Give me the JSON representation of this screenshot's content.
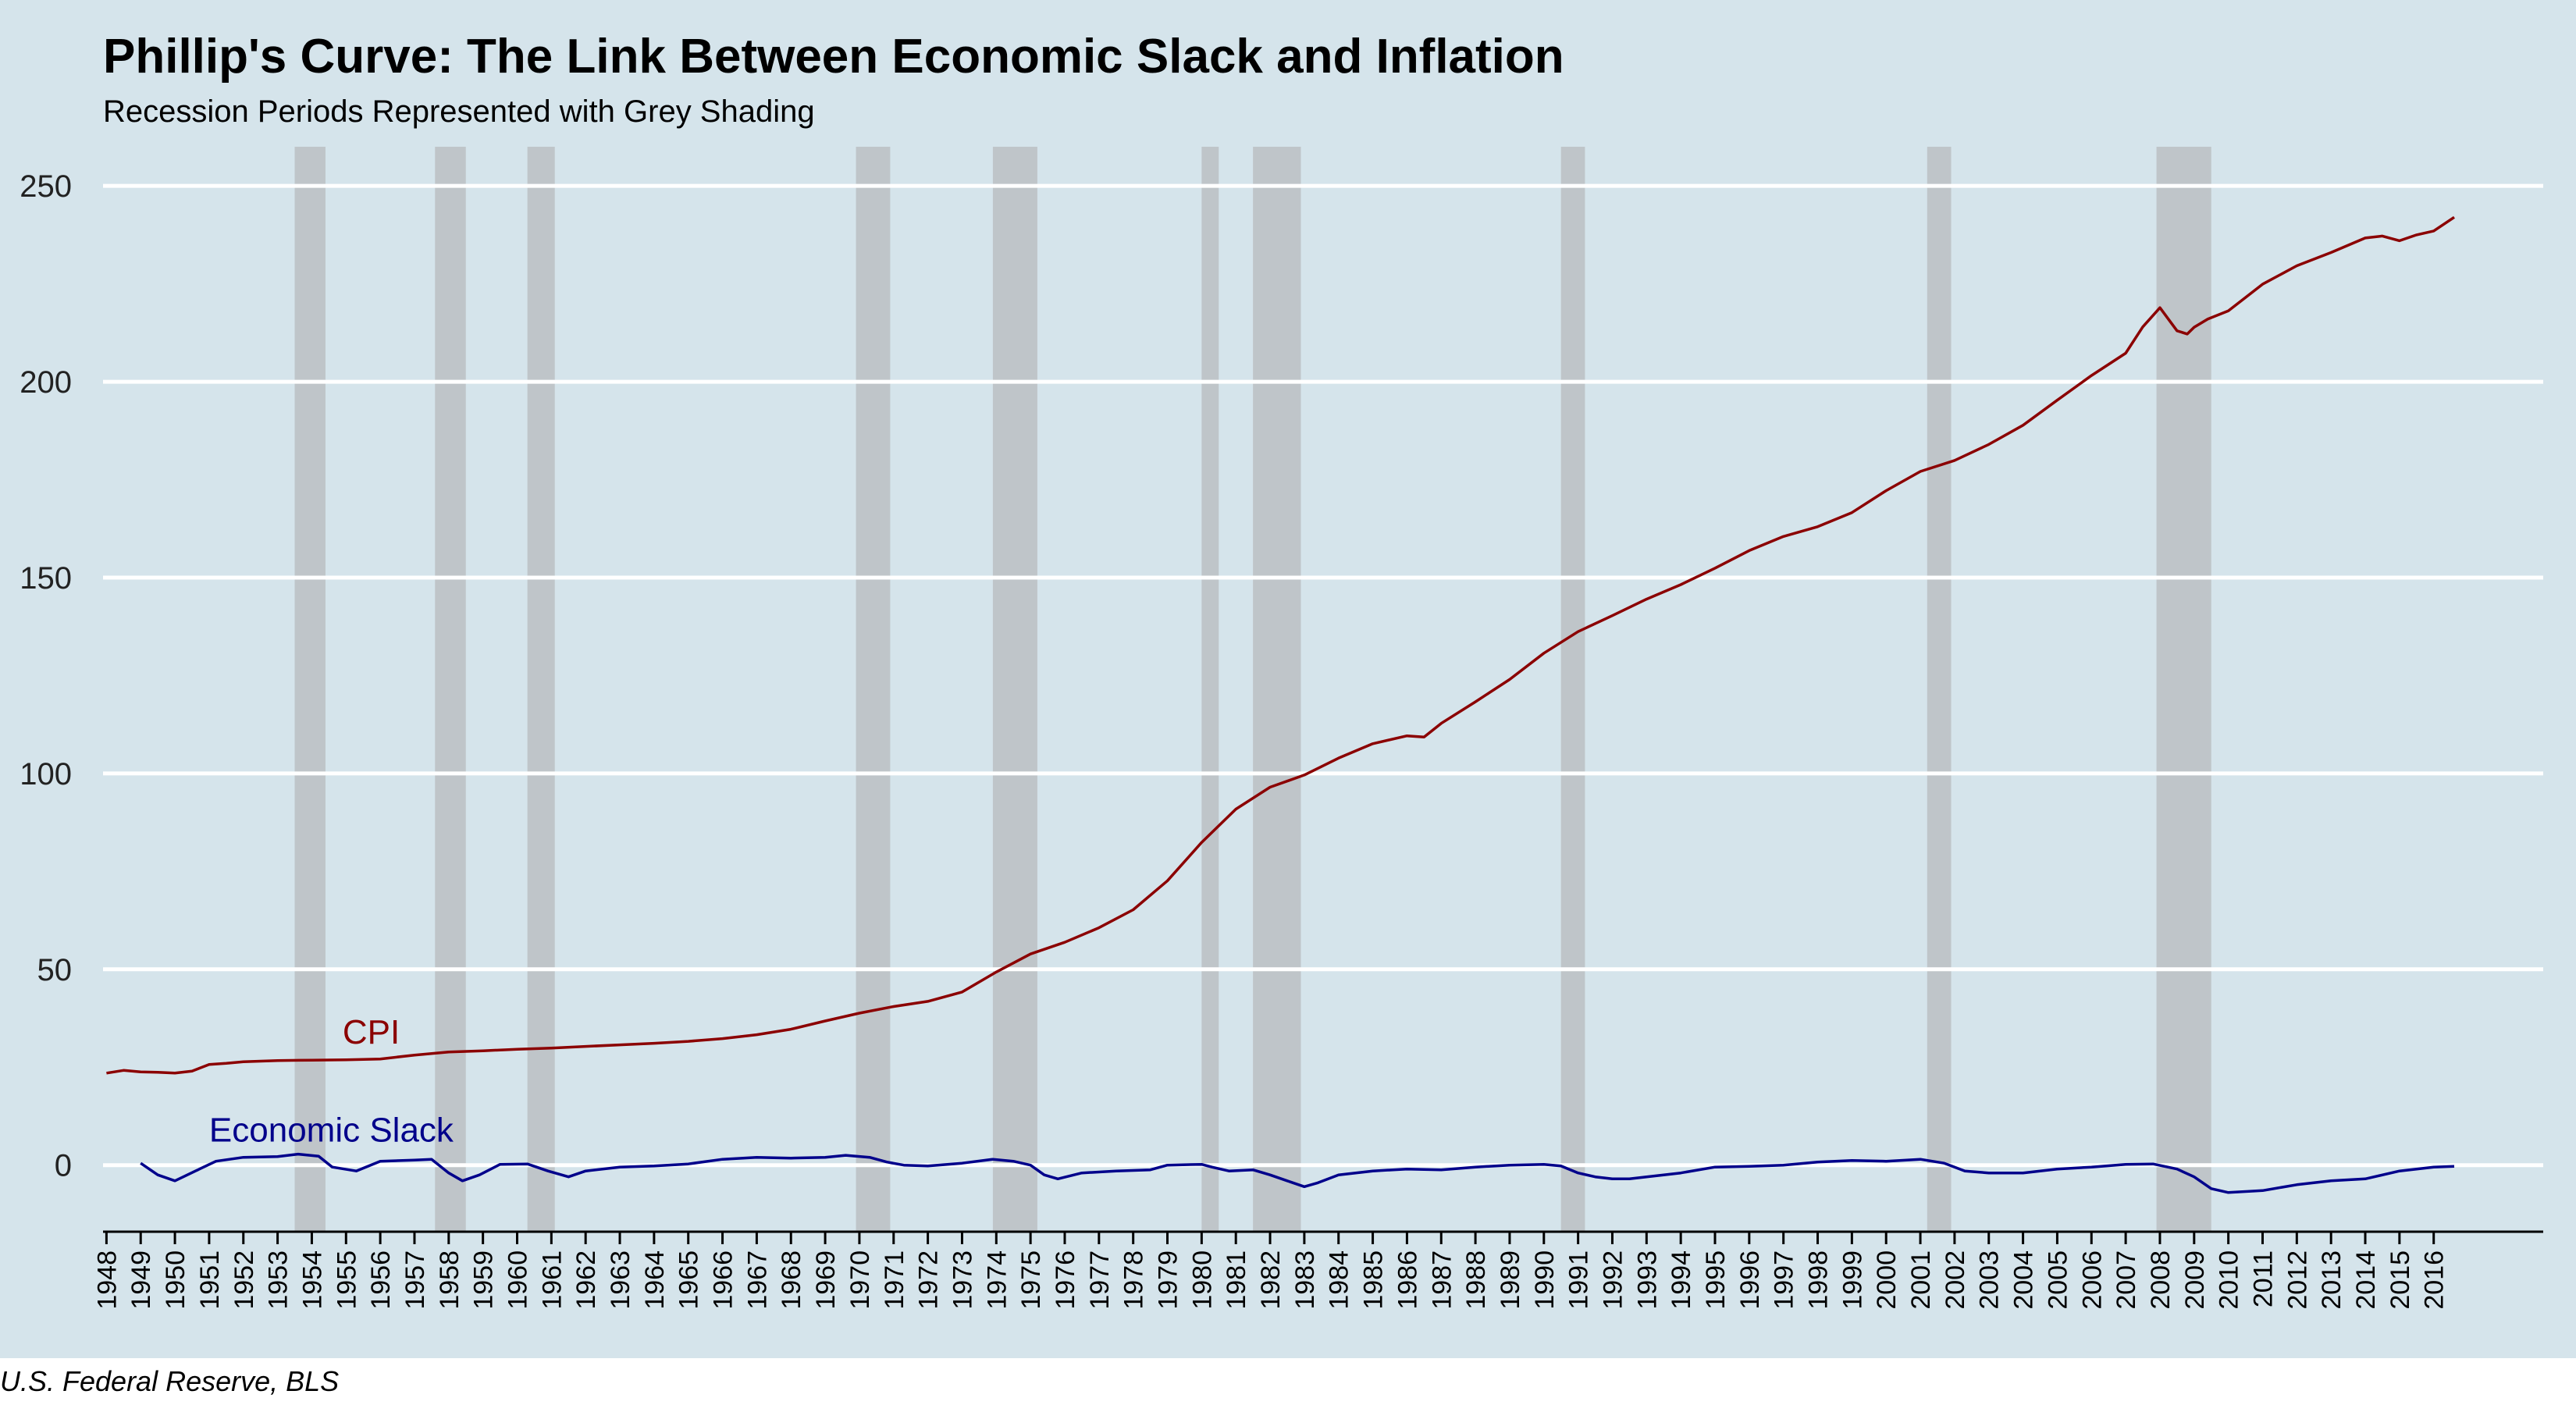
{
  "colors": {
    "panel_bg": "#d5e4eb",
    "gridline": "#ffffff",
    "recession": "#bfc5c9",
    "axis": "#000000",
    "cpi": "#8b0000",
    "slack": "#00008b"
  },
  "caption": "U.S. Federal Reserve, BLS",
  "chart_data": {
    "type": "line",
    "title": "Phillip's Curve: The Link Between Economic Slack and Inflation",
    "subtitle": "Recession Periods Represented with Grey Shading",
    "xlabel": "",
    "ylabel": "",
    "xlim": [
      1947.9,
      2019.2
    ],
    "ylim": [
      -17,
      260
    ],
    "yticks": [
      0,
      50,
      100,
      150,
      200,
      250
    ],
    "xticks": [
      "1948",
      "1949",
      "1950",
      "1951",
      "1952",
      "1953",
      "1954",
      "1955",
      "1956",
      "1957",
      "1958",
      "1959",
      "1960",
      "1961",
      "1962",
      "1963",
      "1964",
      "1965",
      "1966",
      "1967",
      "1968",
      "1969",
      "1970",
      "1971",
      "1972",
      "1973",
      "1974",
      "1975",
      "1976",
      "1977",
      "1978",
      "1979",
      "1980",
      "1981",
      "1982",
      "1983",
      "1984",
      "1985",
      "1986",
      "1987",
      "1988",
      "1989",
      "1990",
      "1991",
      "1992",
      "1993",
      "1994",
      "1995",
      "1996",
      "1997",
      "1998",
      "1999",
      "2000",
      "2001",
      "2002",
      "2003",
      "2004",
      "2005",
      "2006",
      "2007",
      "2008",
      "2009",
      "2010",
      "2011",
      "2012",
      "2013",
      "2014",
      "2015",
      "2016"
    ],
    "grid": "horizontal",
    "recessions": [
      [
        1953.5,
        1954.4
      ],
      [
        1957.6,
        1958.5
      ],
      [
        1960.3,
        1961.1
      ],
      [
        1969.9,
        1970.9
      ],
      [
        1973.9,
        1975.2
      ],
      [
        1980.0,
        1980.5
      ],
      [
        1981.5,
        1982.9
      ],
      [
        1990.5,
        1991.2
      ],
      [
        2001.2,
        2001.9
      ],
      [
        2007.9,
        2009.5
      ]
    ],
    "series": [
      {
        "name": "CPI",
        "label_at": [
          1954.9,
          31
        ],
        "x": [
          1948.0,
          1948.5,
          1949.0,
          1949.5,
          1950.0,
          1950.5,
          1951.0,
          1951.5,
          1952.0,
          1953.0,
          1954.0,
          1955.0,
          1956.0,
          1957.0,
          1958.0,
          1959.0,
          1960.0,
          1961.0,
          1962.0,
          1963.0,
          1964.0,
          1965.0,
          1966.0,
          1967.0,
          1968.0,
          1969.0,
          1970.0,
          1971.0,
          1972.0,
          1973.0,
          1974.0,
          1975.0,
          1976.0,
          1977.0,
          1978.0,
          1979.0,
          1980.0,
          1981.0,
          1982.0,
          1983.0,
          1984.0,
          1985.0,
          1986.0,
          1986.5,
          1987.0,
          1988.0,
          1989.0,
          1990.0,
          1991.0,
          1992.0,
          1993.0,
          1994.0,
          1995.0,
          1996.0,
          1997.0,
          1998.0,
          1999.0,
          2000.0,
          2001.0,
          2002.0,
          2003.0,
          2004.0,
          2005.0,
          2006.0,
          2007.0,
          2007.5,
          2008.0,
          2008.5,
          2008.8,
          2009.0,
          2009.4,
          2010.0,
          2011.0,
          2012.0,
          2013.0,
          2014.0,
          2014.5,
          2015.0,
          2015.5,
          2016.0,
          2016.6
        ],
        "y": [
          23.5,
          24.2,
          23.8,
          23.7,
          23.5,
          24.0,
          25.7,
          26.0,
          26.4,
          26.7,
          26.8,
          26.9,
          27.1,
          28.1,
          28.9,
          29.2,
          29.6,
          29.9,
          30.3,
          30.7,
          31.1,
          31.6,
          32.3,
          33.3,
          34.7,
          36.8,
          38.8,
          40.5,
          41.8,
          44.2,
          49.3,
          53.9,
          56.9,
          60.6,
          65.2,
          72.6,
          82.4,
          90.9,
          96.5,
          99.6,
          103.9,
          107.6,
          109.6,
          109.3,
          112.8,
          118.3,
          124.0,
          130.7,
          136.2,
          140.3,
          144.5,
          148.2,
          152.4,
          156.9,
          160.5,
          163.0,
          166.6,
          172.2,
          177.1,
          179.9,
          184.0,
          188.9,
          195.3,
          201.6,
          207.3,
          214.0,
          218.9,
          213.0,
          212.2,
          213.9,
          216.0,
          218.1,
          224.9,
          229.6,
          233.0,
          236.7,
          237.2,
          236.0,
          237.5,
          238.5,
          242.0
        ]
      },
      {
        "name": "Economic Slack",
        "label_at": [
          1951.0,
          6
        ],
        "x": [
          1949.0,
          1949.5,
          1950.0,
          1950.6,
          1951.2,
          1952.0,
          1953.0,
          1953.6,
          1954.2,
          1954.6,
          1955.3,
          1956.0,
          1957.0,
          1957.5,
          1958.0,
          1958.4,
          1958.9,
          1959.5,
          1960.3,
          1960.9,
          1961.5,
          1962.0,
          1963.0,
          1964.0,
          1965.0,
          1966.0,
          1967.0,
          1968.0,
          1969.0,
          1969.6,
          1970.3,
          1970.8,
          1971.3,
          1972.0,
          1973.0,
          1973.9,
          1974.5,
          1975.0,
          1975.4,
          1975.8,
          1976.5,
          1977.5,
          1978.5,
          1979.0,
          1980.0,
          1980.3,
          1980.8,
          1981.5,
          1982.0,
          1982.5,
          1983.0,
          1983.4,
          1984.0,
          1985.0,
          1986.0,
          1987.0,
          1988.0,
          1989.0,
          1990.0,
          1990.5,
          1991.0,
          1991.5,
          1992.0,
          1992.5,
          1993.0,
          1994.0,
          1995.0,
          1996.0,
          1997.0,
          1998.0,
          1999.0,
          2000.0,
          2001.0,
          2001.7,
          2002.3,
          2003.0,
          2004.0,
          2005.0,
          2006.0,
          2007.0,
          2007.8,
          2008.5,
          2009.0,
          2009.5,
          2010.0,
          2011.0,
          2012.0,
          2013.0,
          2014.0,
          2015.0,
          2016.0,
          2016.6
        ],
        "y": [
          0.5,
          -2.5,
          -4.0,
          -1.5,
          1.0,
          2.0,
          2.2,
          2.8,
          2.3,
          -0.5,
          -1.5,
          1.0,
          1.3,
          1.5,
          -2.0,
          -4.0,
          -2.5,
          0.2,
          0.3,
          -1.5,
          -3.0,
          -1.5,
          -0.5,
          -0.2,
          0.3,
          1.5,
          2.0,
          1.8,
          2.0,
          2.5,
          2.0,
          0.8,
          0.0,
          -0.2,
          0.5,
          1.5,
          1.0,
          0.0,
          -2.5,
          -3.5,
          -2.0,
          -1.5,
          -1.2,
          0.0,
          0.2,
          -0.5,
          -1.5,
          -1.2,
          -2.5,
          -4.0,
          -5.5,
          -4.5,
          -2.5,
          -1.5,
          -1.0,
          -1.2,
          -0.5,
          0.0,
          0.2,
          -0.2,
          -2.0,
          -3.0,
          -3.5,
          -3.5,
          -3.0,
          -2.0,
          -0.5,
          -0.3,
          0.0,
          0.8,
          1.2,
          1.0,
          1.5,
          0.5,
          -1.5,
          -2.0,
          -2.0,
          -1.0,
          -0.5,
          0.2,
          0.3,
          -1.0,
          -3.0,
          -6.0,
          -7.0,
          -6.5,
          -5.0,
          -4.0,
          -3.5,
          -1.5,
          -0.5,
          -0.3
        ]
      }
    ]
  }
}
